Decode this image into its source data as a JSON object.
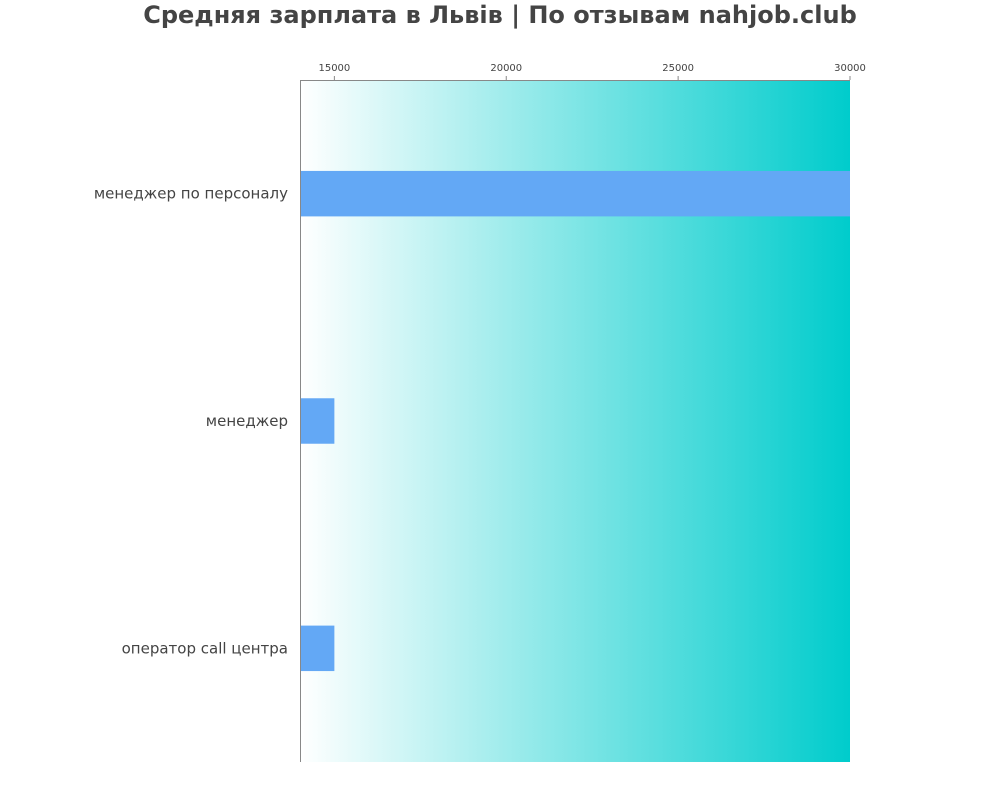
{
  "chart_data": {
    "type": "bar",
    "orientation": "horizontal",
    "title": "Средняя зарплата в Львів | По отзывам nahjob.club",
    "xlabel": "",
    "ylabel": "",
    "categories": [
      "менеджер по персоналу",
      "менеджер",
      "оператор call центра"
    ],
    "values": [
      30000,
      15000,
      15000
    ],
    "xlim": [
      14000,
      30000
    ],
    "x_ticks": [
      15000,
      20000,
      25000,
      30000
    ],
    "x_axis_position": "top",
    "grid": false,
    "legend": "none",
    "colors": {
      "bar": "#63a8f5",
      "background_start": "#ffffff",
      "background_end": "#00cccc",
      "axis": "#888888",
      "text": "#444444"
    }
  }
}
